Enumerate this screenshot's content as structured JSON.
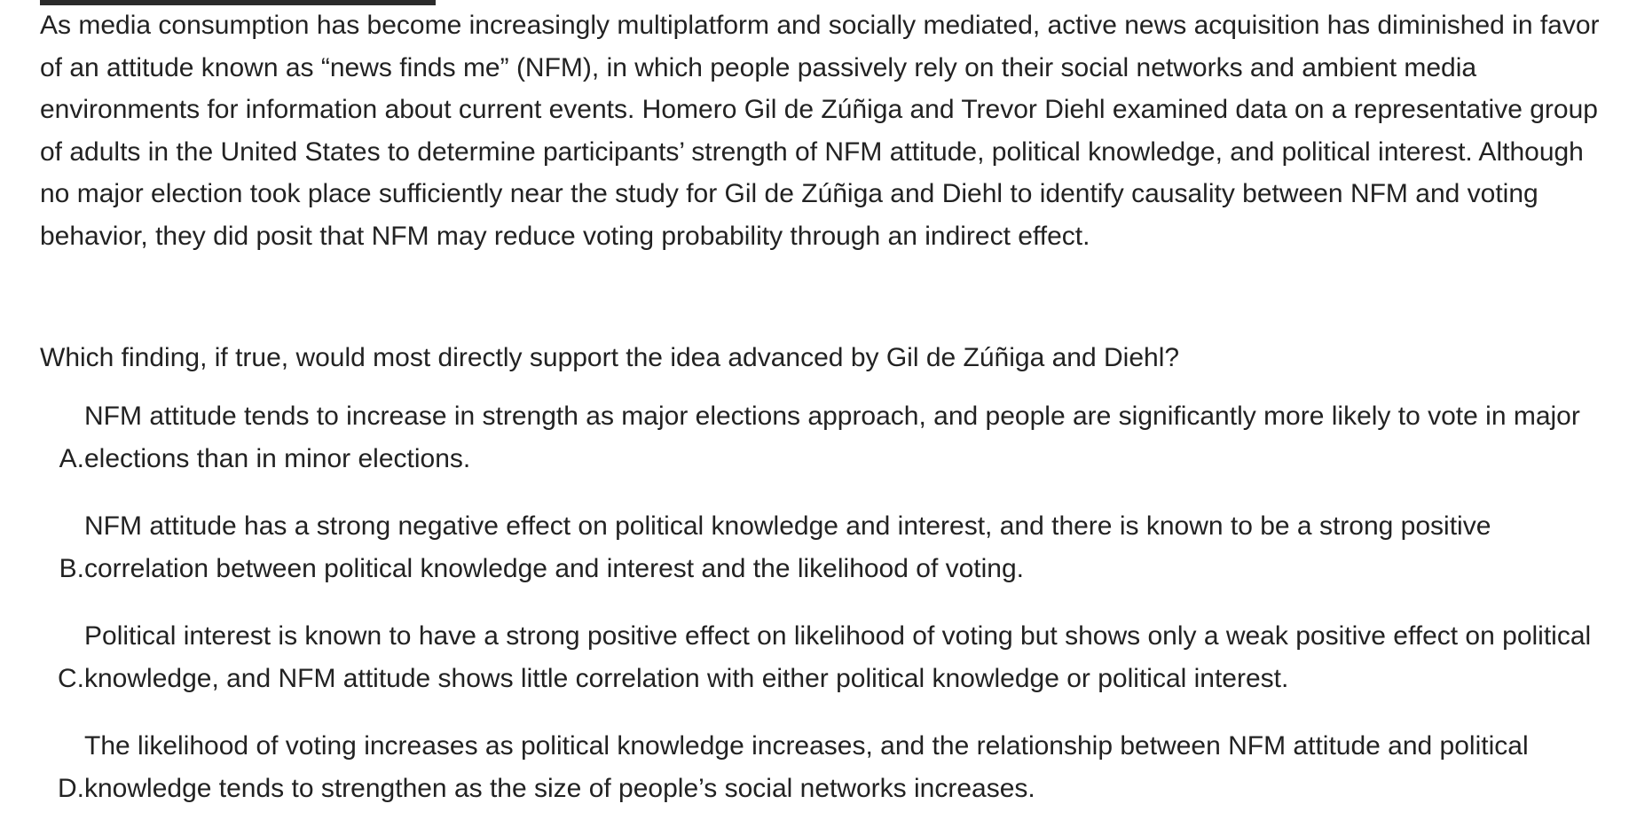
{
  "passage": "As media consumption has become increasingly multiplatform and socially mediated, active news acquisition has diminished in favor of an attitude known as “news finds me” (NFM), in which people passively rely on their social networks and ambient media environments for information about current events. Homero Gil de Zúñiga and Trevor Diehl examined data on a representative group of adults in the United States to determine participants’ strength of NFM attitude, political knowledge, and political interest. Although no major election took place sufficiently near the study for Gil de Zúñiga and Diehl to identify causality between NFM and voting behavior, they did posit that NFM may reduce voting probability through an indirect effect.",
  "question": "Which finding, if true, would most directly support the idea advanced by Gil de Zúñiga and Diehl?",
  "choices": [
    {
      "letter": "A.",
      "text": "NFM attitude tends to increase in strength as major elections approach, and people are significantly more likely to vote in major elections than in minor elections."
    },
    {
      "letter": "B.",
      "text": "NFM attitude has a strong negative effect on political knowledge and interest, and there is known to be a strong positive correlation between political knowledge and interest and the likelihood of voting."
    },
    {
      "letter": "C.",
      "text": "Political interest is known to have a strong positive effect on likelihood of voting but shows only a weak positive effect on political knowledge, and NFM attitude shows little correlation with either political knowledge or political interest."
    },
    {
      "letter": "D.",
      "text": "The likelihood of voting increases as political knowledge increases, and the relationship between NFM attitude and political knowledge tends to strengthen as the size of people’s social networks increases."
    }
  ]
}
